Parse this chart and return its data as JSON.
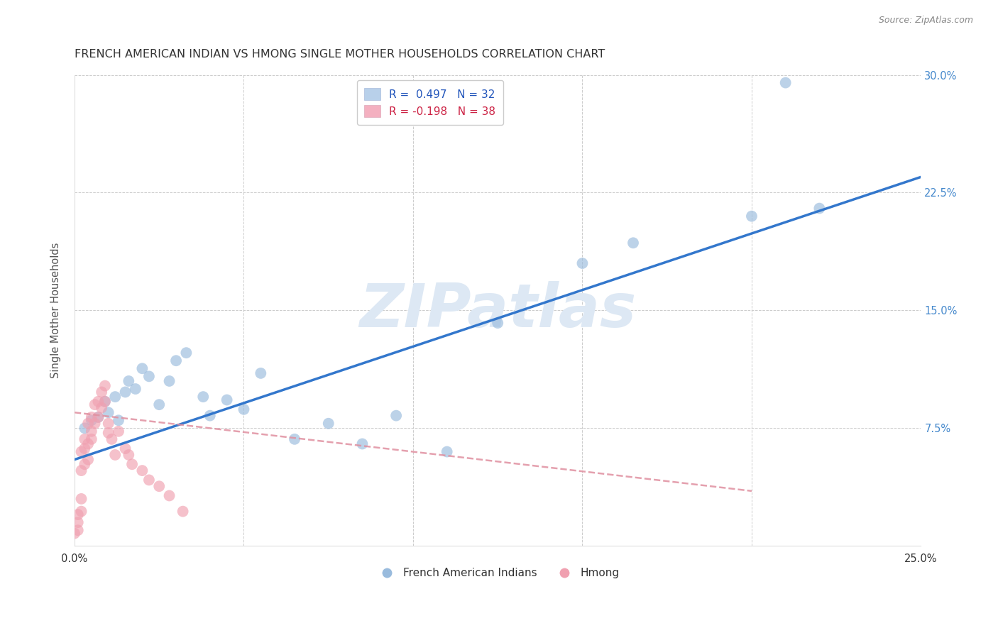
{
  "title": "FRENCH AMERICAN INDIAN VS HMONG SINGLE MOTHER HOUSEHOLDS CORRELATION CHART",
  "source": "Source: ZipAtlas.com",
  "ylabel": "Single Mother Households",
  "xlim": [
    0.0,
    0.25
  ],
  "ylim": [
    0.0,
    0.3
  ],
  "xticks": [
    0.0,
    0.05,
    0.1,
    0.15,
    0.2,
    0.25
  ],
  "yticks": [
    0.0,
    0.075,
    0.15,
    0.225,
    0.3
  ],
  "watermark": "ZIPatlas",
  "legend1_label_blue": "R =  0.497   N = 32",
  "legend1_label_pink": "R = -0.198   N = 38",
  "legend2_label_blue": "French American Indians",
  "legend2_label_pink": "Hmong",
  "blue_line_x0": 0.0,
  "blue_line_y0": 0.055,
  "blue_line_x1": 0.25,
  "blue_line_y1": 0.235,
  "pink_line_x0": 0.0,
  "pink_line_y0": 0.085,
  "pink_line_x1": 0.2,
  "pink_line_y1": 0.035,
  "fai_x": [
    0.003,
    0.005,
    0.007,
    0.009,
    0.01,
    0.012,
    0.013,
    0.015,
    0.016,
    0.018,
    0.02,
    0.022,
    0.025,
    0.028,
    0.03,
    0.033,
    0.038,
    0.04,
    0.045,
    0.05,
    0.055,
    0.065,
    0.075,
    0.085,
    0.095,
    0.11,
    0.125,
    0.15,
    0.165,
    0.2,
    0.21,
    0.22
  ],
  "fai_y": [
    0.075,
    0.08,
    0.082,
    0.092,
    0.085,
    0.095,
    0.08,
    0.098,
    0.105,
    0.1,
    0.113,
    0.108,
    0.09,
    0.105,
    0.118,
    0.123,
    0.095,
    0.083,
    0.093,
    0.087,
    0.11,
    0.068,
    0.078,
    0.065,
    0.083,
    0.06,
    0.142,
    0.18,
    0.193,
    0.21,
    0.295,
    0.215
  ],
  "hmong_x": [
    0.0,
    0.001,
    0.001,
    0.001,
    0.002,
    0.002,
    0.002,
    0.002,
    0.003,
    0.003,
    0.003,
    0.004,
    0.004,
    0.004,
    0.005,
    0.005,
    0.005,
    0.006,
    0.006,
    0.007,
    0.007,
    0.008,
    0.008,
    0.009,
    0.009,
    0.01,
    0.01,
    0.011,
    0.012,
    0.013,
    0.015,
    0.016,
    0.017,
    0.02,
    0.022,
    0.025,
    0.028,
    0.032
  ],
  "hmong_y": [
    0.008,
    0.01,
    0.015,
    0.02,
    0.022,
    0.03,
    0.048,
    0.06,
    0.052,
    0.062,
    0.068,
    0.055,
    0.065,
    0.078,
    0.068,
    0.073,
    0.082,
    0.078,
    0.09,
    0.082,
    0.092,
    0.088,
    0.098,
    0.092,
    0.102,
    0.078,
    0.072,
    0.068,
    0.058,
    0.073,
    0.062,
    0.058,
    0.052,
    0.048,
    0.042,
    0.038,
    0.032,
    0.022
  ],
  "blue_scatter_color": "#99bbdd",
  "pink_scatter_color": "#f0a0b0",
  "blue_line_color": "#3377cc",
  "pink_line_color": "#e090a0",
  "scatter_size": 130,
  "scatter_alpha": 0.65,
  "background_color": "#ffffff",
  "grid_color": "#cccccc",
  "title_fontsize": 11.5,
  "watermark_color": "#dde8f4",
  "source_text": "Source: ZipAtlas.com"
}
